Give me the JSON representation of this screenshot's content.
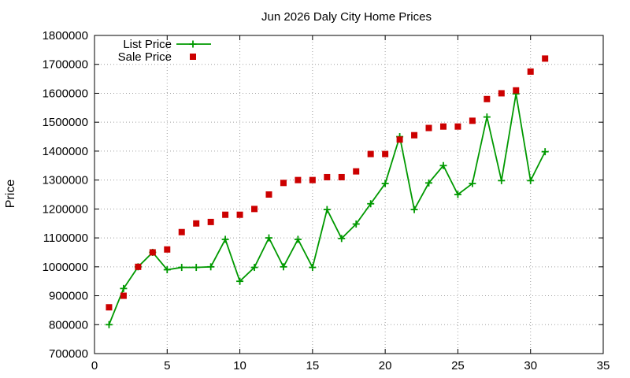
{
  "chart_data": {
    "type": "line",
    "title": "Jun 2026 Daly City Home Prices",
    "xlabel": "",
    "ylabel": "Price",
    "xlim": [
      0,
      35
    ],
    "ylim": [
      700000,
      1800000
    ],
    "x_ticks": [
      0,
      5,
      10,
      15,
      20,
      25,
      30,
      35
    ],
    "y_ticks": [
      700000,
      800000,
      900000,
      1000000,
      1100000,
      1200000,
      1300000,
      1400000,
      1500000,
      1600000,
      1700000,
      1800000
    ],
    "grid": true,
    "legend_position": "top-left",
    "series": [
      {
        "name": "List Price",
        "style": "line-with-plus-markers",
        "color": "#009900",
        "x": [
          1,
          2,
          3,
          4,
          5,
          6,
          7,
          8,
          9,
          10,
          11,
          12,
          13,
          14,
          15,
          16,
          17,
          18,
          19,
          20,
          21,
          22,
          23,
          24,
          25,
          26,
          27,
          28,
          29,
          30,
          31
        ],
        "y": [
          800000,
          925000,
          1000000,
          1050000,
          990000,
          998000,
          998000,
          1000000,
          1095000,
          950000,
          998000,
          1100000,
          1000000,
          1095000,
          998000,
          1198000,
          1098000,
          1148000,
          1218000,
          1288000,
          1450000,
          1198000,
          1290000,
          1350000,
          1250000,
          1288000,
          1518000,
          1298000,
          1598000,
          1298000,
          1398000
        ]
      },
      {
        "name": "Sale Price",
        "style": "square-markers",
        "color": "#cc0000",
        "x": [
          1,
          2,
          3,
          4,
          5,
          6,
          7,
          8,
          9,
          10,
          11,
          12,
          13,
          14,
          15,
          16,
          17,
          18,
          19,
          20,
          21,
          22,
          23,
          24,
          25,
          26,
          27,
          28,
          29,
          30,
          31
        ],
        "y": [
          860000,
          900000,
          1000000,
          1050000,
          1060000,
          1120000,
          1150000,
          1155000,
          1180000,
          1180000,
          1200000,
          1250000,
          1290000,
          1300000,
          1300000,
          1310000,
          1310000,
          1330000,
          1390000,
          1390000,
          1440000,
          1455000,
          1480000,
          1485000,
          1485000,
          1505000,
          1580000,
          1600000,
          1610000,
          1675000,
          1720000
        ]
      }
    ]
  }
}
